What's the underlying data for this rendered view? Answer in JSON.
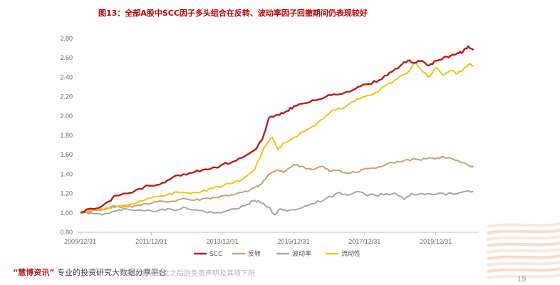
{
  "title": "图13：全部A股中SCC因子多头组合在反转、波动率因子回撤期间仍表现较好",
  "colors": {
    "title": "#c00000",
    "SCC": "#b71c1c",
    "反转": "#c9a070",
    "波动率": "#a6a6a6",
    "流动性": "#f2c114",
    "axis": "#bfbfbf"
  },
  "footer": {
    "brand": "“慧博资讯”",
    "text": "专业的投资研究大数据分享平台",
    "faint": "请务必阅读正文之后的免责声明及其项下所"
  },
  "page_number": "19",
  "chart_data": {
    "type": "line",
    "xlabel": "",
    "ylabel": "",
    "x_range": [
      2009.9,
      2021.2
    ],
    "ylim": [
      0.8,
      2.8
    ],
    "yticks": [
      "0.80",
      "1.00",
      "1.20",
      "1.40",
      "1.60",
      "1.80",
      "2.00",
      "2.20",
      "2.40",
      "2.60",
      "2.80"
    ],
    "xticks": [
      {
        "label": "2009/12/31",
        "x": 2009.99
      },
      {
        "label": "2011/12/31",
        "x": 2011.99
      },
      {
        "label": "2013/12/31",
        "x": 2013.99
      },
      {
        "label": "2015/12/31",
        "x": 2015.99
      },
      {
        "label": "2017/12/31",
        "x": 2017.99
      },
      {
        "label": "2019/12/31",
        "x": 2019.99
      }
    ],
    "grid": false,
    "legend_position": "bottom",
    "series": [
      {
        "name": "SCC",
        "points": [
          [
            2010.0,
            1.0
          ],
          [
            2010.2,
            1.04
          ],
          [
            2010.5,
            1.05
          ],
          [
            2010.8,
            1.12
          ],
          [
            2011.0,
            1.18
          ],
          [
            2011.3,
            1.2
          ],
          [
            2011.5,
            1.22
          ],
          [
            2011.8,
            1.27
          ],
          [
            2012.0,
            1.28
          ],
          [
            2012.3,
            1.31
          ],
          [
            2012.6,
            1.37
          ],
          [
            2012.9,
            1.4
          ],
          [
            2013.2,
            1.42
          ],
          [
            2013.5,
            1.45
          ],
          [
            2013.8,
            1.47
          ],
          [
            2014.0,
            1.5
          ],
          [
            2014.3,
            1.53
          ],
          [
            2014.6,
            1.58
          ],
          [
            2014.9,
            1.65
          ],
          [
            2015.1,
            1.75
          ],
          [
            2015.2,
            1.85
          ],
          [
            2015.3,
            1.98
          ],
          [
            2015.45,
            2.0
          ],
          [
            2015.6,
            2.01
          ],
          [
            2015.8,
            2.05
          ],
          [
            2016.0,
            2.1
          ],
          [
            2016.3,
            2.13
          ],
          [
            2016.6,
            2.16
          ],
          [
            2016.9,
            2.2
          ],
          [
            2017.2,
            2.22
          ],
          [
            2017.5,
            2.25
          ],
          [
            2017.8,
            2.3
          ],
          [
            2018.1,
            2.33
          ],
          [
            2018.4,
            2.37
          ],
          [
            2018.7,
            2.45
          ],
          [
            2019.0,
            2.52
          ],
          [
            2019.2,
            2.57
          ],
          [
            2019.4,
            2.55
          ],
          [
            2019.6,
            2.57
          ],
          [
            2019.8,
            2.52
          ],
          [
            2020.0,
            2.57
          ],
          [
            2020.2,
            2.6
          ],
          [
            2020.4,
            2.62
          ],
          [
            2020.6,
            2.65
          ],
          [
            2020.75,
            2.66
          ],
          [
            2020.9,
            2.72
          ],
          [
            2021.05,
            2.68
          ]
        ]
      },
      {
        "name": "反转",
        "points": [
          [
            2010.0,
            1.0
          ],
          [
            2010.3,
            1.02
          ],
          [
            2010.6,
            1.03
          ],
          [
            2011.0,
            1.07
          ],
          [
            2011.3,
            1.06
          ],
          [
            2011.6,
            1.08
          ],
          [
            2012.0,
            1.1
          ],
          [
            2012.3,
            1.12
          ],
          [
            2012.6,
            1.12
          ],
          [
            2012.9,
            1.15
          ],
          [
            2013.2,
            1.13
          ],
          [
            2013.5,
            1.15
          ],
          [
            2013.8,
            1.16
          ],
          [
            2014.1,
            1.18
          ],
          [
            2014.4,
            1.2
          ],
          [
            2014.7,
            1.22
          ],
          [
            2014.9,
            1.26
          ],
          [
            2015.1,
            1.3
          ],
          [
            2015.3,
            1.4
          ],
          [
            2015.5,
            1.44
          ],
          [
            2015.7,
            1.42
          ],
          [
            2016.0,
            1.5
          ],
          [
            2016.2,
            1.48
          ],
          [
            2016.5,
            1.45
          ],
          [
            2016.8,
            1.48
          ],
          [
            2017.0,
            1.43
          ],
          [
            2017.2,
            1.44
          ],
          [
            2017.5,
            1.41
          ],
          [
            2017.8,
            1.42
          ],
          [
            2018.0,
            1.46
          ],
          [
            2018.3,
            1.46
          ],
          [
            2018.6,
            1.5
          ],
          [
            2018.9,
            1.53
          ],
          [
            2019.2,
            1.55
          ],
          [
            2019.5,
            1.55
          ],
          [
            2019.8,
            1.57
          ],
          [
            2020.0,
            1.56
          ],
          [
            2020.2,
            1.58
          ],
          [
            2020.5,
            1.55
          ],
          [
            2020.7,
            1.52
          ],
          [
            2020.9,
            1.49
          ],
          [
            2021.05,
            1.47
          ]
        ]
      },
      {
        "name": "波动率",
        "points": [
          [
            2010.0,
            1.0
          ],
          [
            2010.3,
            1.0
          ],
          [
            2010.6,
            0.98
          ],
          [
            2011.0,
            1.02
          ],
          [
            2011.3,
            1.04
          ],
          [
            2011.6,
            1.03
          ],
          [
            2012.0,
            1.02
          ],
          [
            2012.3,
            1.04
          ],
          [
            2012.6,
            1.03
          ],
          [
            2012.9,
            1.06
          ],
          [
            2013.2,
            1.03
          ],
          [
            2013.5,
            1.01
          ],
          [
            2013.8,
            1.0
          ],
          [
            2014.1,
            1.02
          ],
          [
            2014.4,
            1.04
          ],
          [
            2014.7,
            1.09
          ],
          [
            2014.9,
            1.13
          ],
          [
            2015.1,
            1.1
          ],
          [
            2015.3,
            1.06
          ],
          [
            2015.45,
            0.98
          ],
          [
            2015.6,
            1.04
          ],
          [
            2015.8,
            1.02
          ],
          [
            2016.0,
            1.03
          ],
          [
            2016.3,
            1.07
          ],
          [
            2016.6,
            1.1
          ],
          [
            2016.9,
            1.15
          ],
          [
            2017.1,
            1.17
          ],
          [
            2017.3,
            1.21
          ],
          [
            2017.5,
            1.18
          ],
          [
            2017.8,
            1.22
          ],
          [
            2018.0,
            1.19
          ],
          [
            2018.3,
            1.18
          ],
          [
            2018.6,
            1.2
          ],
          [
            2018.9,
            1.19
          ],
          [
            2019.1,
            1.14
          ],
          [
            2019.3,
            1.2
          ],
          [
            2019.6,
            1.2
          ],
          [
            2019.9,
            1.19
          ],
          [
            2020.2,
            1.2
          ],
          [
            2020.5,
            1.19
          ],
          [
            2020.7,
            1.21
          ],
          [
            2020.9,
            1.23
          ],
          [
            2021.05,
            1.22
          ]
        ]
      },
      {
        "name": "流动性",
        "points": [
          [
            2010.0,
            1.0
          ],
          [
            2010.2,
            1.02
          ],
          [
            2010.5,
            1.03
          ],
          [
            2010.8,
            1.05
          ],
          [
            2011.0,
            1.06
          ],
          [
            2011.3,
            1.08
          ],
          [
            2011.6,
            1.11
          ],
          [
            2011.9,
            1.15
          ],
          [
            2012.2,
            1.17
          ],
          [
            2012.5,
            1.2
          ],
          [
            2012.8,
            1.21
          ],
          [
            2013.1,
            1.2
          ],
          [
            2013.4,
            1.22
          ],
          [
            2013.7,
            1.25
          ],
          [
            2014.0,
            1.28
          ],
          [
            2014.3,
            1.31
          ],
          [
            2014.6,
            1.36
          ],
          [
            2014.9,
            1.45
          ],
          [
            2015.1,
            1.62
          ],
          [
            2015.25,
            1.72
          ],
          [
            2015.4,
            1.78
          ],
          [
            2015.55,
            1.65
          ],
          [
            2015.7,
            1.72
          ],
          [
            2016.0,
            1.78
          ],
          [
            2016.3,
            1.84
          ],
          [
            2016.6,
            1.9
          ],
          [
            2016.9,
            2.0
          ],
          [
            2017.1,
            2.06
          ],
          [
            2017.4,
            2.08
          ],
          [
            2017.7,
            2.15
          ],
          [
            2018.0,
            2.2
          ],
          [
            2018.3,
            2.24
          ],
          [
            2018.6,
            2.32
          ],
          [
            2018.9,
            2.38
          ],
          [
            2019.2,
            2.45
          ],
          [
            2019.4,
            2.55
          ],
          [
            2019.6,
            2.47
          ],
          [
            2019.8,
            2.4
          ],
          [
            2020.0,
            2.5
          ],
          [
            2020.2,
            2.42
          ],
          [
            2020.4,
            2.47
          ],
          [
            2020.6,
            2.44
          ],
          [
            2020.8,
            2.5
          ],
          [
            2020.95,
            2.54
          ],
          [
            2021.05,
            2.52
          ]
        ]
      }
    ]
  }
}
